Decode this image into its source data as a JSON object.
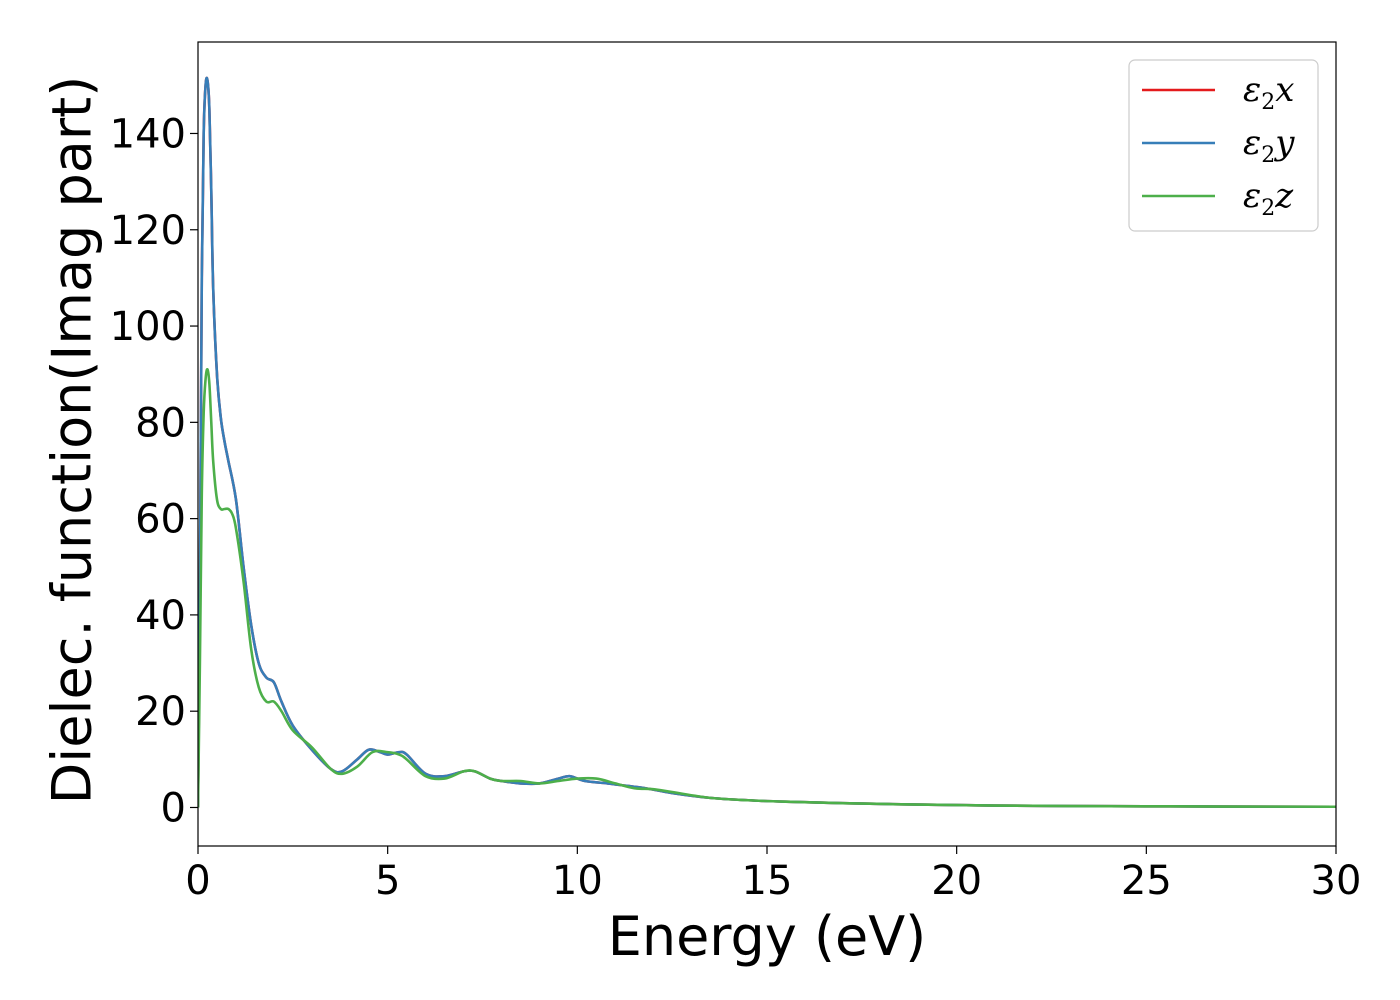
{
  "chart_data": {
    "type": "line",
    "title": "",
    "xlabel": "Energy (eV)",
    "ylabel": "Dielec. function(Imag part)",
    "xlim": [
      0,
      30
    ],
    "ylim": [
      -8,
      159
    ],
    "xticks": [
      0,
      5,
      10,
      15,
      20,
      25,
      30
    ],
    "yticks": [
      0,
      20,
      40,
      60,
      80,
      100,
      120,
      140
    ],
    "grid": false,
    "legend_position": "top-right",
    "series": [
      {
        "name": "ε2x",
        "symbol": "ε",
        "sub": "2",
        "axis": "x",
        "color": "#e41a1c",
        "x": [
          0,
          0.05,
          0.1,
          0.15,
          0.2,
          0.25,
          0.3,
          0.35,
          0.4,
          0.5,
          0.6,
          0.7,
          0.8,
          1.0,
          1.2,
          1.4,
          1.6,
          1.8,
          2.0,
          2.2,
          2.5,
          3.0,
          3.5,
          3.8,
          4.2,
          4.5,
          4.8,
          5.0,
          5.3,
          5.5,
          6.0,
          6.5,
          7.0,
          7.3,
          7.7,
          8.0,
          8.5,
          9.0,
          9.5,
          9.8,
          10.2,
          10.8,
          11.3,
          11.8,
          12.5,
          13.5,
          14.5,
          15.5,
          17,
          19,
          21,
          23,
          25,
          27,
          30
        ],
        "y": [
          0,
          45,
          110,
          140,
          150,
          151,
          145,
          128,
          108,
          90,
          81,
          76,
          72,
          64,
          50,
          38,
          30,
          27,
          26,
          22,
          17,
          12,
          8,
          7.5,
          10,
          12,
          11.5,
          11,
          11.5,
          11,
          7,
          6.5,
          7.5,
          7.5,
          6,
          5.5,
          5,
          5,
          6,
          6.5,
          5.5,
          5,
          4.5,
          4,
          3,
          2,
          1.5,
          1.2,
          0.9,
          0.6,
          0.4,
          0.3,
          0.25,
          0.2,
          0.15
        ]
      },
      {
        "name": "ε2y",
        "symbol": "ε",
        "sub": "2",
        "axis": "y",
        "color": "#377eb8",
        "x": [
          0,
          0.05,
          0.1,
          0.15,
          0.2,
          0.25,
          0.3,
          0.35,
          0.4,
          0.5,
          0.6,
          0.7,
          0.8,
          1.0,
          1.2,
          1.4,
          1.6,
          1.8,
          2.0,
          2.2,
          2.5,
          3.0,
          3.5,
          3.8,
          4.2,
          4.5,
          4.8,
          5.0,
          5.3,
          5.5,
          6.0,
          6.5,
          7.0,
          7.3,
          7.7,
          8.0,
          8.5,
          9.0,
          9.5,
          9.8,
          10.2,
          10.8,
          11.3,
          11.8,
          12.5,
          13.5,
          14.5,
          15.5,
          17,
          19,
          21,
          23,
          25,
          27,
          30
        ],
        "y": [
          0,
          45,
          110,
          140,
          150,
          151,
          145,
          128,
          108,
          90,
          81,
          76,
          72,
          64,
          50,
          38,
          30,
          27,
          26,
          22,
          17,
          12,
          8,
          7.5,
          10,
          12,
          11.5,
          11,
          11.5,
          11,
          7,
          6.5,
          7.5,
          7.5,
          6,
          5.5,
          5,
          5,
          6,
          6.5,
          5.5,
          5,
          4.5,
          4,
          3,
          2,
          1.5,
          1.2,
          0.9,
          0.6,
          0.4,
          0.3,
          0.25,
          0.2,
          0.15
        ]
      },
      {
        "name": "ε2z",
        "symbol": "ε",
        "sub": "2",
        "axis": "z",
        "color": "#4daf4a",
        "x": [
          0,
          0.05,
          0.1,
          0.15,
          0.2,
          0.25,
          0.3,
          0.35,
          0.4,
          0.5,
          0.6,
          0.7,
          0.8,
          0.9,
          1.0,
          1.2,
          1.4,
          1.6,
          1.8,
          2.0,
          2.2,
          2.5,
          3.0,
          3.5,
          3.8,
          4.2,
          4.6,
          5.0,
          5.3,
          5.5,
          6.0,
          6.5,
          7.0,
          7.3,
          7.7,
          8.0,
          8.5,
          9.0,
          9.5,
          10.0,
          10.5,
          11.0,
          11.5,
          12.0,
          12.5,
          13.5,
          14.5,
          15.5,
          17,
          19,
          21,
          23,
          25,
          27,
          30
        ],
        "y": [
          0,
          30,
          65,
          82,
          89,
          91,
          88,
          80,
          72,
          64,
          62,
          62,
          62,
          61,
          58,
          47,
          33,
          25,
          22,
          22,
          20,
          16,
          12.5,
          8,
          7,
          8.5,
          11.5,
          11.5,
          11,
          10,
          6.5,
          6,
          7.5,
          7.5,
          6,
          5.5,
          5.5,
          5,
          5.5,
          6,
          6,
          5,
          4,
          3.8,
          3.2,
          2,
          1.5,
          1.2,
          0.9,
          0.6,
          0.4,
          0.3,
          0.25,
          0.2,
          0.15
        ]
      }
    ]
  }
}
